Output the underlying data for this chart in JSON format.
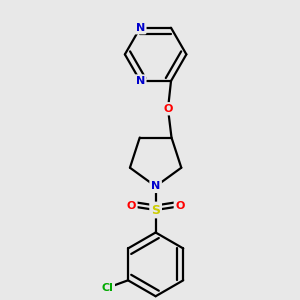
{
  "background_color": "#e8e8e8",
  "atom_colors": {
    "N": "#0000cc",
    "O": "#ff0000",
    "S": "#cccc00",
    "Cl": "#00aa00"
  },
  "bond_color": "#000000",
  "bond_width": 1.6,
  "figsize": [
    3.0,
    3.0
  ],
  "dpi": 100,
  "xlim": [
    -2.5,
    2.5
  ],
  "ylim": [
    -4.2,
    3.8
  ]
}
